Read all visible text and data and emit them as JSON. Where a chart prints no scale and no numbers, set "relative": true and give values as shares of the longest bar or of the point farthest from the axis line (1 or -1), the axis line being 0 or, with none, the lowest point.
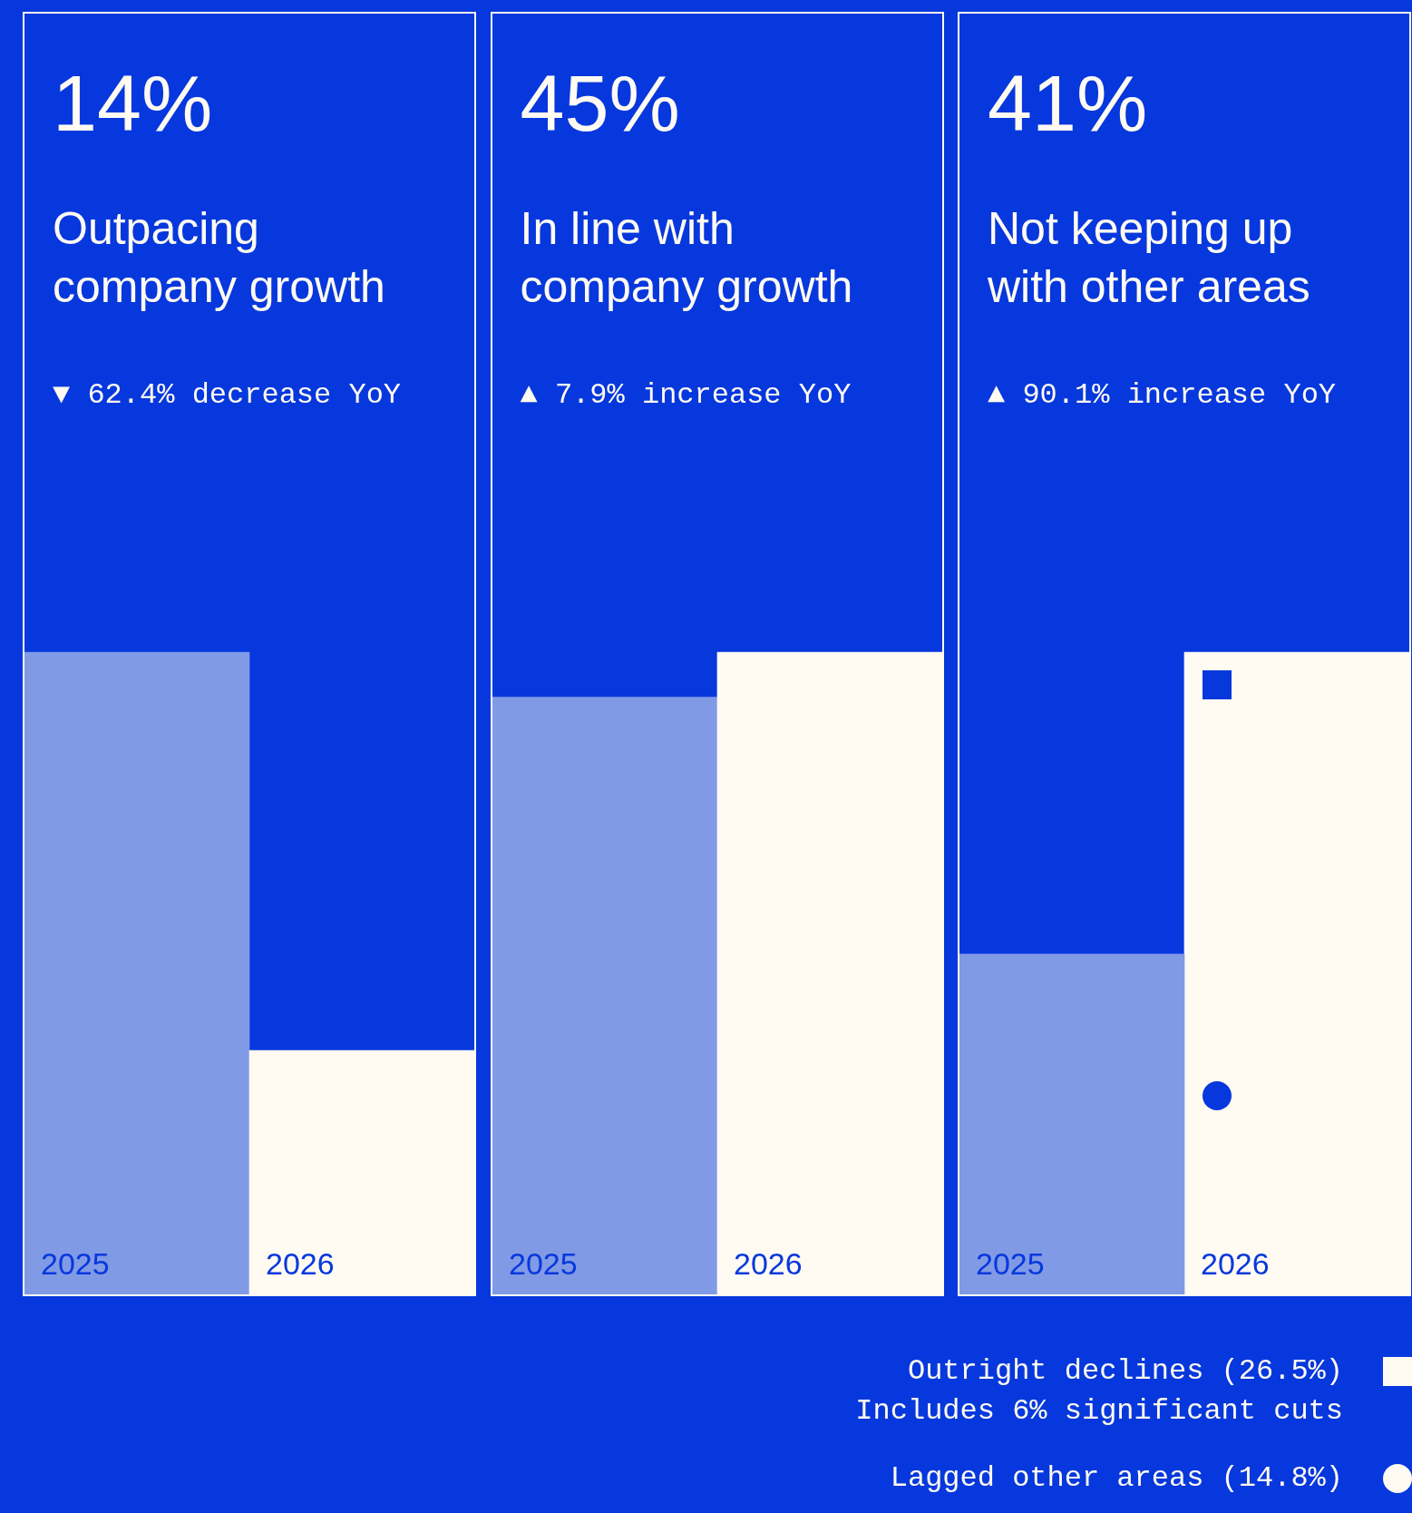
{
  "chart_data": [
    {
      "type": "bar",
      "title": "14%",
      "subtitle": "Outpacing company growth",
      "annotations": [
        "▼ 62.4% decrease YoY"
      ],
      "categories": [
        "2025",
        "2026"
      ],
      "relative": true,
      "tick_labels": "x",
      "series": [
        {
          "colors": [
            "#819ae6",
            "#fffaf2"
          ],
          "values": [
            1,
            0.38
          ]
        }
      ]
    },
    {
      "type": "bar",
      "title": "45%",
      "subtitle": "In line with company growth",
      "annotations": [
        "▲ 7.9% increase YoY"
      ],
      "categories": [
        "2025",
        "2026"
      ],
      "relative": true,
      "tick_labels": "x",
      "series": [
        {
          "colors": [
            "#819ae6",
            "#fffaf2"
          ],
          "values": [
            0.93,
            1
          ]
        }
      ]
    },
    {
      "type": "bar",
      "title": "41%",
      "subtitle": "Not keeping up with other areas",
      "annotations": [
        "▲ 90.1% increase YoY",
        "Includes 6% significant cuts"
      ],
      "categories": [
        "2025",
        "2026"
      ],
      "relative": true,
      "tick_labels": "x",
      "stacked": true,
      "legend": "bottom",
      "series": [
        {
          "color": "#819ae6",
          "values": [
            0.53,
            null
          ]
        },
        {
          "name": "Lagged other areas (14.8%)",
          "color": "#fffaf2",
          "marker": "circle",
          "values": [
            null,
            0.36
          ]
        },
        {
          "name": "Outright declines (26.5%)",
          "color": "#fffaf2",
          "marker": "square",
          "values": [
            null,
            0.64
          ]
        }
      ]
    }
  ]
}
